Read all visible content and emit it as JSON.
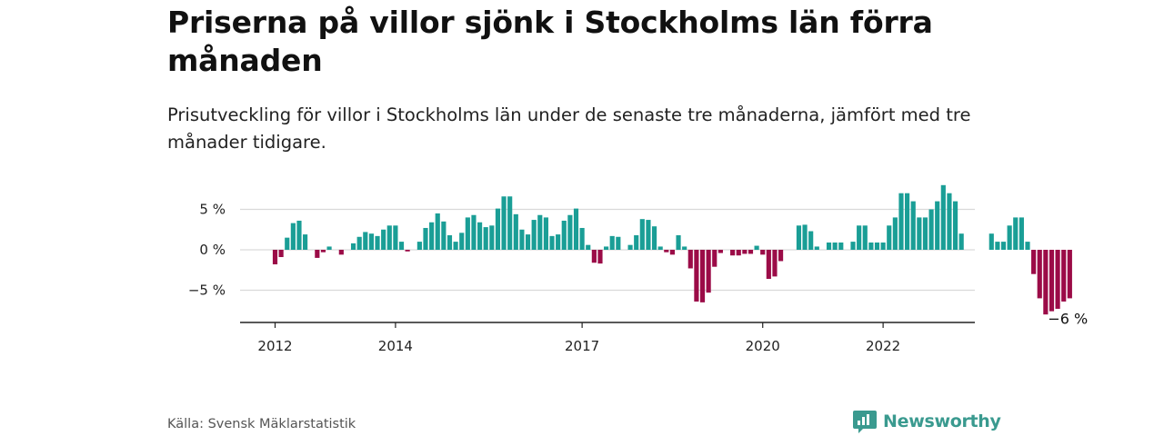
{
  "chart_data": {
    "type": "bar",
    "title": "Priserna på villor sjönk i Stockholms län förra månaden",
    "subtitle": "Prisutveckling för villor i Stockholms län under de senaste tre månaderna, jämfört med tre månader tidigare.",
    "xlabel": "",
    "ylabel": "",
    "ylim": [
      -9,
      9
    ],
    "grid": true,
    "colors": {
      "positive": "#1a9e96",
      "negative": "#9b0b47"
    },
    "y_ticks": [
      {
        "value": 5,
        "label": "5 %"
      },
      {
        "value": 0,
        "label": "0 %"
      },
      {
        "value": -5,
        "label": "−5 %"
      }
    ],
    "x_ticks": [
      {
        "month_index": 0,
        "label": "2012"
      },
      {
        "month_index": 20,
        "label": "2014"
      },
      {
        "month_index": 51,
        "label": "2017"
      },
      {
        "month_index": 81,
        "label": "2020"
      },
      {
        "month_index": 101,
        "label": "2022"
      }
    ],
    "x_start_month": "2012-01",
    "values": [
      -1.8,
      -0.9,
      1.5,
      3.3,
      3.6,
      1.9,
      null,
      -1.0,
      -0.3,
      0.4,
      null,
      -0.6,
      null,
      0.8,
      1.6,
      2.2,
      2.0,
      1.7,
      2.5,
      3.0,
      3.0,
      1.0,
      -0.2,
      null,
      1.0,
      2.7,
      3.4,
      4.5,
      3.5,
      1.8,
      1.0,
      2.1,
      4.0,
      4.3,
      3.4,
      2.8,
      3.0,
      5.1,
      6.6,
      6.6,
      4.4,
      2.5,
      1.9,
      3.7,
      4.3,
      4.0,
      1.7,
      1.9,
      3.6,
      4.3,
      5.1,
      2.7,
      0.6,
      -1.6,
      -1.7,
      0.4,
      1.7,
      1.6,
      null,
      0.6,
      1.8,
      3.8,
      3.7,
      2.9,
      0.4,
      -0.3,
      -0.6,
      1.8,
      0.4,
      -2.3,
      -6.4,
      -6.5,
      -5.3,
      -2.1,
      -0.4,
      null,
      -0.7,
      -0.7,
      -0.5,
      -0.5,
      0.5,
      -0.6,
      -3.6,
      -3.3,
      -1.4,
      null,
      null,
      3.0,
      3.1,
      2.3,
      0.4,
      null,
      0.9,
      0.9,
      0.9,
      null,
      1.0,
      3.0,
      3.0,
      0.9,
      0.9,
      0.9,
      3.0,
      4.0,
      7.0,
      7.0,
      6.0,
      4.0,
      4.0,
      5.0,
      6.0,
      8.0,
      7.0,
      6.0,
      2.0,
      null,
      null,
      null,
      null,
      2.0,
      1.0,
      1.0,
      3.0,
      4.0,
      4.0,
      1.0,
      -3.0,
      -6.0,
      -8.0,
      -7.6,
      -7.3,
      -6.4,
      -6.0
    ],
    "last_value_label": "−6 %"
  },
  "footer": {
    "source": "Källa: Svensk Mäklarstatistik",
    "brand": "Newsworthy"
  }
}
